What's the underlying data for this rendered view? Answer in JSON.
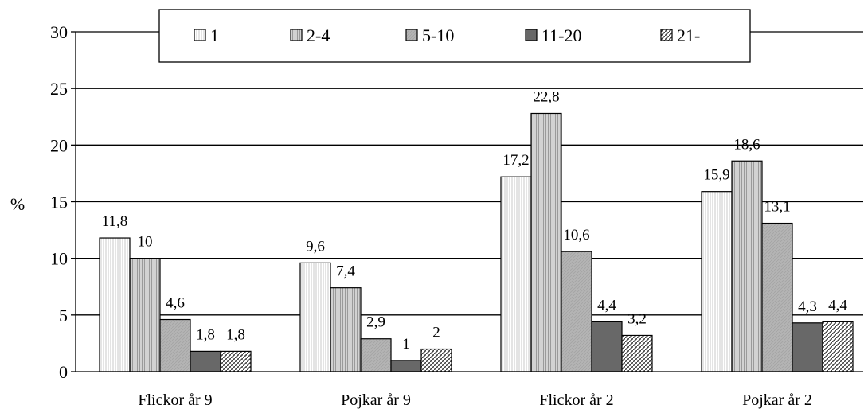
{
  "chart_data": {
    "type": "bar",
    "ylabel": "%",
    "ylim": [
      0,
      30
    ],
    "yticks": [
      "0",
      "5",
      "10",
      "15",
      "20",
      "25",
      "30"
    ],
    "grid": true,
    "legend_position": "top",
    "categories": [
      "Flickor år 9",
      "Pojkar år 9",
      "Flickor år 2",
      "Pojkar år 2"
    ],
    "series": [
      {
        "name": "1",
        "values": [
          11.8,
          9.6,
          17.2,
          15.9
        ],
        "labels": [
          "11,8",
          "9,6",
          "17,2",
          "15,9"
        ]
      },
      {
        "name": "2-4",
        "values": [
          10,
          7.4,
          22.8,
          18.6
        ],
        "labels": [
          "10",
          "7,4",
          "22,8",
          "18,6"
        ]
      },
      {
        "name": "5-10",
        "values": [
          4.6,
          2.9,
          10.6,
          13.1
        ],
        "labels": [
          "4,6",
          "2,9",
          "10,6",
          "13,1"
        ]
      },
      {
        "name": "11-20",
        "values": [
          1.8,
          1,
          4.4,
          4.3
        ],
        "labels": [
          "1,8",
          "1",
          "4,4",
          "4,3"
        ]
      },
      {
        "name": "21-",
        "values": [
          1.8,
          2,
          3.2,
          4.4
        ],
        "labels": [
          "1,8",
          "2",
          "3,2",
          "4,4"
        ]
      }
    ]
  }
}
